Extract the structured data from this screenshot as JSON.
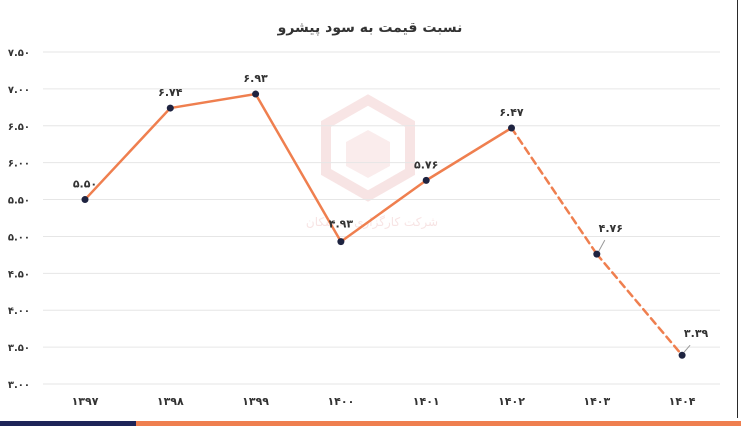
{
  "chart_data": {
    "type": "line",
    "title": "نسبت قیمت به سود پیشرو",
    "categories": [
      "۱۳۹۷",
      "۱۳۹۸",
      "۱۳۹۹",
      "۱۴۰۰",
      "۱۴۰۱",
      "۱۴۰۲",
      "۱۴۰۳",
      "۱۴۰۴"
    ],
    "values": [
      5.5,
      6.74,
      6.93,
      4.93,
      5.76,
      6.47,
      4.76,
      3.39
    ],
    "data_labels": [
      "۵.۵۰",
      "۶.۷۴",
      "۶.۹۳",
      "۴.۹۳",
      "۵.۷۶",
      "۶.۴۷",
      "۴.۷۶",
      "۳.۳۹"
    ],
    "forecast_start_index": 5,
    "ylim": [
      3.0,
      7.5
    ],
    "yticks": [
      3.0,
      3.5,
      4.0,
      4.5,
      5.0,
      5.5,
      6.0,
      6.5,
      7.0,
      7.5
    ],
    "ytick_labels": [
      "۳.۰۰",
      "۳.۵۰",
      "۴.۰۰",
      "۴.۵۰",
      "۵.۰۰",
      "۵.۵۰",
      "۶.۰۰",
      "۶.۵۰",
      "۷.۰۰",
      "۷.۵۰"
    ],
    "grid": true,
    "legend": "none",
    "xlabel": "",
    "ylabel": ""
  },
  "watermark": {
    "text": "شرکت کارگزاری ... سکان"
  },
  "colors": {
    "line": "#ef7f4f",
    "marker": "#1e2340",
    "grid": "#e6e6e6",
    "text": "#333333",
    "bar_dark": "#1e2458",
    "bar_accent": "#ef7f4f",
    "watermark": "#f2cfcf"
  }
}
